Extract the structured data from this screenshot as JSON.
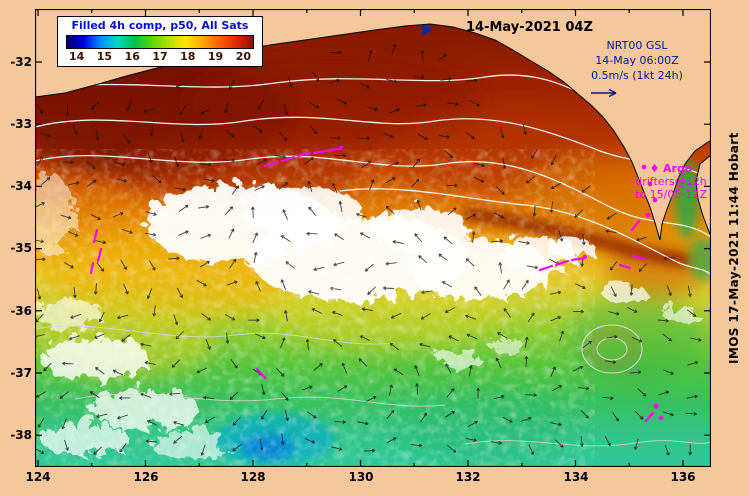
{
  "legend": {
    "title": "Filled 4h comp, p50, All Sats",
    "ticks": [
      "14",
      "15",
      "16",
      "17",
      "18",
      "19",
      "20"
    ],
    "colorbar_colors": [
      "#00006e",
      "#0000e0",
      "#0090ff",
      "#00d8c0",
      "#00c050",
      "#58d800",
      "#b0e000",
      "#ffe400",
      "#ffa800",
      "#ff6000",
      "#e02800",
      "#8c0e00"
    ]
  },
  "header": {
    "datetime": "14-May-2021 04Z"
  },
  "nrt": {
    "line1": "NRT00 GSL",
    "line2": "14-May 06:00Z",
    "line3": "0.5m/s (1kt 24h)"
  },
  "argo": {
    "marker": "♦",
    "title": "Argo",
    "line2": "drifters@12h",
    "line3": "to 15/05-12Z"
  },
  "watermark": "IMOS 17-May-2021 11:44 Hobart",
  "axes": {
    "x_labels": [
      "124",
      "126",
      "128",
      "130",
      "132",
      "134",
      "136"
    ],
    "y_labels": [
      "-32",
      "-33",
      "-34",
      "-35",
      "-36",
      "-37",
      "-38"
    ]
  },
  "colors": {
    "background": "#f5c79a",
    "legend_title_text": "#0010d8",
    "nrt_text": "#001a8c",
    "argo_text": "#ff00ff",
    "date_text": "#000000",
    "colorbar_tick_text": "#3c1400"
  }
}
